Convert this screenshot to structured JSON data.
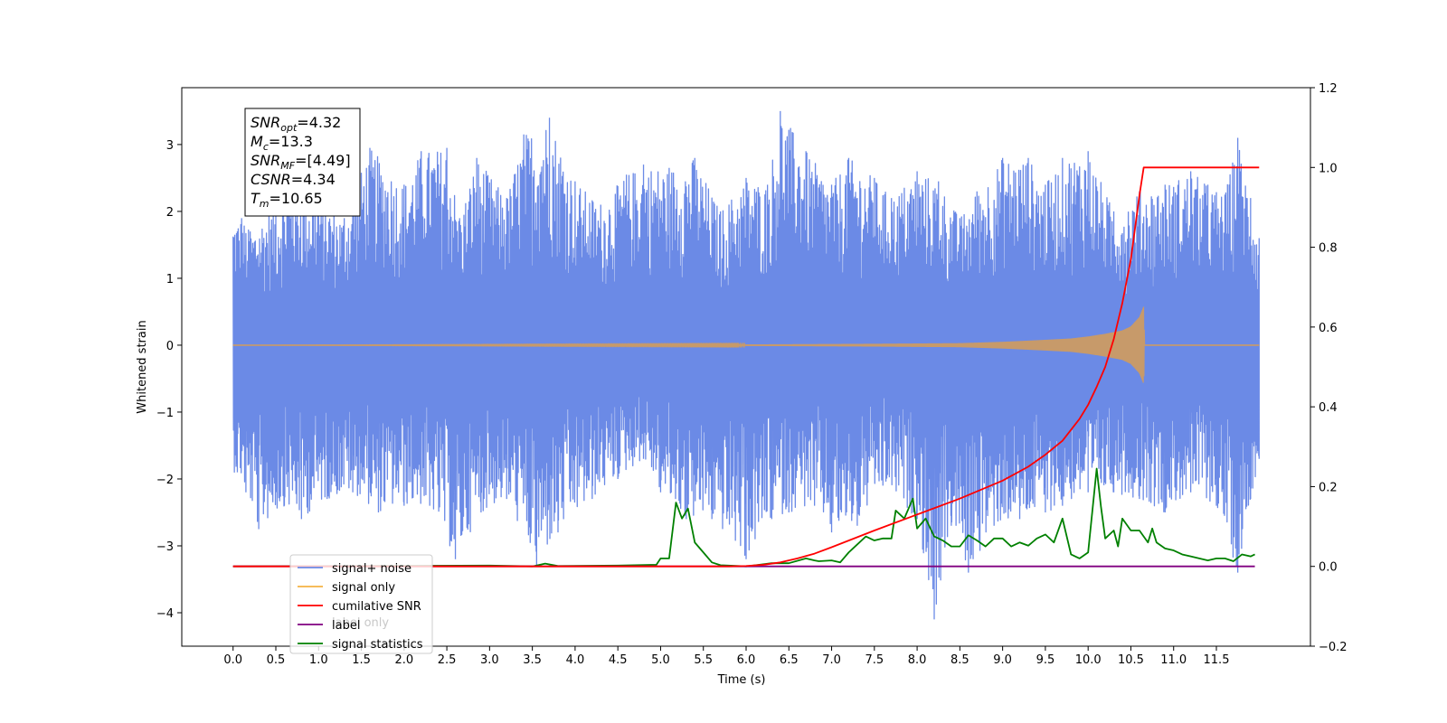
{
  "chart_data": {
    "type": "line",
    "xlabel": "Time (s)",
    "ylabel": "Whitened strain",
    "xlim": [
      -0.6,
      12.6
    ],
    "ylim": [
      -4.5,
      3.85
    ],
    "y2lim": [
      -0.2,
      1.2
    ],
    "x_ticks": [
      "0.0",
      "0.5",
      "1.0",
      "1.5",
      "2.0",
      "2.5",
      "3.0",
      "3.5",
      "4.0",
      "4.5",
      "5.0",
      "5.5",
      "6.0",
      "6.5",
      "7.0",
      "7.5",
      "8.0",
      "8.5",
      "9.0",
      "9.5",
      "10.0",
      "10.5",
      "11.0",
      "11.5"
    ],
    "y_ticks": [
      "3",
      "2",
      "1",
      "0",
      "−1",
      "−2",
      "−3",
      "−4"
    ],
    "y2_ticks": [
      "1.2",
      "1.0",
      "0.8",
      "0.6",
      "0.4",
      "0.2",
      "0.0",
      "−0.2"
    ],
    "grid": false,
    "legend_position": "bottom-left",
    "colors": {
      "signal_noise": "#6b8ae6",
      "signal_only": "#f5b342",
      "signal_fill": "#c79a6a",
      "cumulative_snr": "#ff0000",
      "label": "#800080",
      "signal_statistics": "#008000"
    },
    "series": [
      {
        "name": "signal+ noise",
        "axis": "left",
        "x_range": [
          0.0,
          12.0
        ],
        "envelope_peaks": [
          [
            0.1,
            1.9
          ],
          [
            0.2,
            1.7
          ],
          [
            0.5,
            2.1
          ],
          [
            0.7,
            2.35
          ],
          [
            1.0,
            2.2
          ],
          [
            1.3,
            1.9
          ],
          [
            1.6,
            2.95
          ],
          [
            2.0,
            2.4
          ],
          [
            2.2,
            2.9
          ],
          [
            2.5,
            2.95
          ],
          [
            2.65,
            1.9
          ],
          [
            2.85,
            2.8
          ],
          [
            3.2,
            2.2
          ],
          [
            3.4,
            3.15
          ],
          [
            3.7,
            3.4
          ],
          [
            4.0,
            2.45
          ],
          [
            4.3,
            2.1
          ],
          [
            4.6,
            2.55
          ],
          [
            4.8,
            2.7
          ],
          [
            5.1,
            2.65
          ],
          [
            5.4,
            2.8
          ],
          [
            5.7,
            2.0
          ],
          [
            6.0,
            2.5
          ],
          [
            6.25,
            2.4
          ],
          [
            6.4,
            3.5
          ],
          [
            6.7,
            2.9
          ],
          [
            7.0,
            2.4
          ],
          [
            7.2,
            2.8
          ],
          [
            7.5,
            2.5
          ],
          [
            7.7,
            2.2
          ],
          [
            8.0,
            2.6
          ],
          [
            8.25,
            2.45
          ],
          [
            8.5,
            1.9
          ],
          [
            8.7,
            2.3
          ],
          [
            9.0,
            2.8
          ],
          [
            9.3,
            2.8
          ],
          [
            9.5,
            2.4
          ],
          [
            9.7,
            2.8
          ],
          [
            10.0,
            2.9
          ],
          [
            10.3,
            2.0
          ],
          [
            10.6,
            2.3
          ],
          [
            10.9,
            2.4
          ],
          [
            11.2,
            2.6
          ],
          [
            11.4,
            2.4
          ],
          [
            11.6,
            2.25
          ],
          [
            11.75,
            3.1
          ],
          [
            11.9,
            2.2
          ],
          [
            12.0,
            1.6
          ]
        ],
        "envelope_troughs": [
          [
            0.05,
            -1.9
          ],
          [
            0.15,
            -2.2
          ],
          [
            0.3,
            -2.75
          ],
          [
            0.6,
            -2.4
          ],
          [
            0.8,
            -2.6
          ],
          [
            1.1,
            -2.3
          ],
          [
            1.4,
            -2.2
          ],
          [
            1.7,
            -2.5
          ],
          [
            2.0,
            -2.4
          ],
          [
            2.3,
            -2.4
          ],
          [
            2.6,
            -3.2
          ],
          [
            2.9,
            -2.5
          ],
          [
            3.2,
            -2.3
          ],
          [
            3.55,
            -3.3
          ],
          [
            3.8,
            -2.8
          ],
          [
            4.2,
            -2.3
          ],
          [
            4.5,
            -2.0
          ],
          [
            4.8,
            -1.7
          ],
          [
            5.0,
            -2.2
          ],
          [
            5.3,
            -2.6
          ],
          [
            5.6,
            -2.6
          ],
          [
            6.0,
            -3.2
          ],
          [
            6.3,
            -2.6
          ],
          [
            6.5,
            -2.5
          ],
          [
            6.8,
            -2.4
          ],
          [
            7.0,
            -2.8
          ],
          [
            7.3,
            -2.7
          ],
          [
            7.6,
            -2.1
          ],
          [
            8.0,
            -2.6
          ],
          [
            8.2,
            -4.1
          ],
          [
            8.4,
            -2.7
          ],
          [
            8.6,
            -3.4
          ],
          [
            8.9,
            -2.7
          ],
          [
            9.2,
            -2.6
          ],
          [
            9.5,
            -2.5
          ],
          [
            9.7,
            -2.4
          ],
          [
            10.0,
            -2.2
          ],
          [
            10.3,
            -2.2
          ],
          [
            10.6,
            -2.3
          ],
          [
            10.9,
            -2.5
          ],
          [
            11.2,
            -2.2
          ],
          [
            11.5,
            -2.4
          ],
          [
            11.75,
            -3.4
          ],
          [
            11.9,
            -2.3
          ],
          [
            12.0,
            -1.7
          ]
        ]
      },
      {
        "name": "signal only",
        "axis": "left",
        "x": [
          0.0,
          6.0,
          7.5,
          8.5,
          9.0,
          9.5,
          9.8,
          10.0,
          10.2,
          10.4,
          10.5,
          10.6,
          10.65,
          10.66,
          12.0
        ],
        "amplitude": [
          0.0,
          0.01,
          0.02,
          0.03,
          0.05,
          0.08,
          0.1,
          0.13,
          0.17,
          0.22,
          0.28,
          0.42,
          0.58,
          0.0,
          0.0
        ]
      },
      {
        "name": "cumilative SNR",
        "axis": "right",
        "x": [
          0.0,
          5.8,
          6.0,
          6.2,
          6.4,
          6.6,
          6.8,
          7.0,
          7.5,
          8.0,
          8.5,
          9.0,
          9.3,
          9.5,
          9.7,
          9.9,
          10.0,
          10.1,
          10.2,
          10.3,
          10.4,
          10.5,
          10.55,
          10.6,
          10.65,
          12.0
        ],
        "values": [
          0.0,
          0.0,
          0.001,
          0.004,
          0.01,
          0.02,
          0.032,
          0.048,
          0.09,
          0.13,
          0.17,
          0.215,
          0.25,
          0.28,
          0.315,
          0.37,
          0.405,
          0.45,
          0.5,
          0.57,
          0.66,
          0.77,
          0.85,
          0.93,
          1.0,
          1.0
        ]
      },
      {
        "name": "label",
        "axis": "right",
        "x": [
          0.0,
          11.95
        ],
        "values": [
          0.0,
          0.0
        ]
      },
      {
        "name": "signal statistics",
        "axis": "right",
        "x": [
          0.0,
          3.0,
          3.5,
          3.65,
          3.8,
          4.5,
          4.95,
          5.0,
          5.1,
          5.18,
          5.25,
          5.32,
          5.4,
          5.5,
          5.6,
          5.7,
          6.0,
          6.3,
          6.5,
          6.7,
          6.8,
          6.85,
          7.0,
          7.1,
          7.2,
          7.3,
          7.4,
          7.5,
          7.6,
          7.7,
          7.75,
          7.85,
          7.95,
          8.0,
          8.1,
          8.2,
          8.3,
          8.4,
          8.5,
          8.6,
          8.7,
          8.8,
          8.9,
          9.0,
          9.1,
          9.2,
          9.3,
          9.4,
          9.5,
          9.6,
          9.7,
          9.8,
          9.9,
          10.0,
          10.05,
          10.1,
          10.15,
          10.2,
          10.3,
          10.35,
          10.4,
          10.5,
          10.6,
          10.7,
          10.75,
          10.8,
          10.9,
          11.0,
          11.1,
          11.2,
          11.3,
          11.4,
          11.5,
          11.6,
          11.7,
          11.8,
          11.9,
          11.95
        ],
        "values": [
          0.0,
          0.002,
          0.0,
          0.007,
          0.001,
          0.002,
          0.004,
          0.02,
          0.02,
          0.16,
          0.12,
          0.145,
          0.06,
          0.035,
          0.01,
          0.003,
          0.0,
          0.008,
          0.008,
          0.02,
          0.015,
          0.013,
          0.015,
          0.01,
          0.035,
          0.055,
          0.075,
          0.065,
          0.07,
          0.07,
          0.14,
          0.12,
          0.17,
          0.095,
          0.12,
          0.075,
          0.065,
          0.05,
          0.05,
          0.078,
          0.065,
          0.05,
          0.07,
          0.07,
          0.05,
          0.06,
          0.052,
          0.07,
          0.08,
          0.06,
          0.12,
          0.03,
          0.02,
          0.035,
          0.14,
          0.245,
          0.15,
          0.07,
          0.09,
          0.05,
          0.12,
          0.09,
          0.09,
          0.06,
          0.095,
          0.06,
          0.045,
          0.04,
          0.03,
          0.025,
          0.02,
          0.015,
          0.02,
          0.02,
          0.013,
          0.03,
          0.025,
          0.03
        ]
      }
    ]
  },
  "annotation": {
    "lines": [
      {
        "var": "SNR",
        "sub": "opt",
        "value": "=4.32"
      },
      {
        "var": "M",
        "sub": "c",
        "value": "=13.3"
      },
      {
        "var": "SNR",
        "sub": "MF",
        "value": "=[4.49]"
      },
      {
        "var": "CSNR",
        "sub": "",
        "value": "=4.34"
      },
      {
        "var": "T",
        "sub": "m",
        "value": "=10.65"
      }
    ]
  },
  "legend": {
    "entries": [
      {
        "label": "signal+ noise",
        "color": "#6b8ae6"
      },
      {
        "label": "signal only",
        "color": "#f5b342"
      },
      {
        "label": "cumilative SNR",
        "color": "#ff0000"
      },
      {
        "label": "label",
        "color": "#800080"
      },
      {
        "label": "signal statistics",
        "color": "#008000"
      }
    ],
    "hidden_text": "label only"
  }
}
